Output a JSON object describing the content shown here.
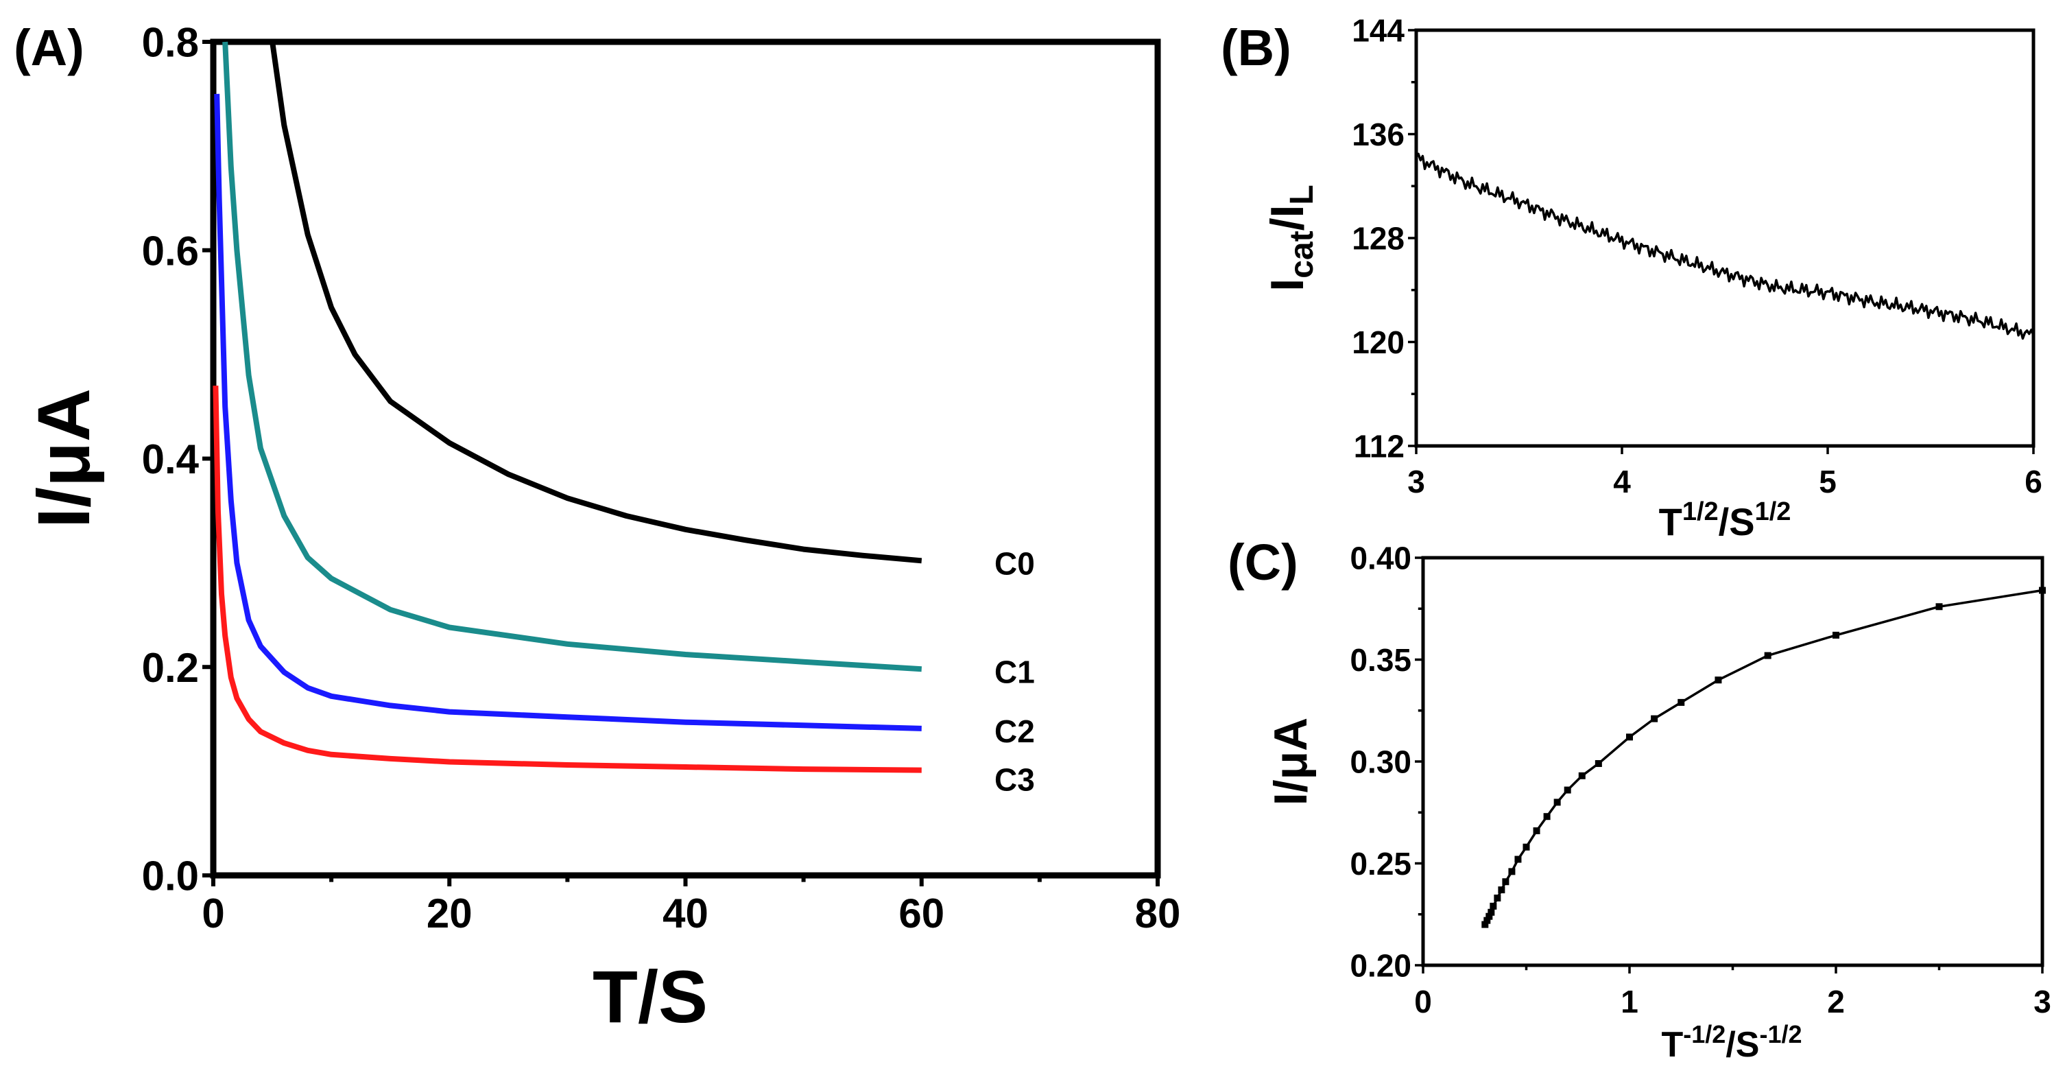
{
  "chart_data": [
    {
      "panel": "(A)",
      "type": "line",
      "xlabel": "T/S",
      "ylabel": "I/μA",
      "xlim": [
        0,
        80
      ],
      "ylim": [
        0,
        0.8
      ],
      "xticks": [
        "0",
        "20",
        "40",
        "60",
        "80"
      ],
      "yticks": [
        "0.0",
        "0.2",
        "0.4",
        "0.6",
        "0.8"
      ],
      "grid": false,
      "series": [
        {
          "name": "C0",
          "color": "#000000",
          "points": [
            [
              5,
              0.8
            ],
            [
              6,
              0.72
            ],
            [
              8,
              0.615
            ],
            [
              10,
              0.545
            ],
            [
              12,
              0.5
            ],
            [
              15,
              0.455
            ],
            [
              20,
              0.415
            ],
            [
              25,
              0.385
            ],
            [
              30,
              0.362
            ],
            [
              35,
              0.345
            ],
            [
              40,
              0.332
            ],
            [
              45,
              0.322
            ],
            [
              50,
              0.313
            ],
            [
              55,
              0.307
            ],
            [
              60,
              0.302
            ]
          ]
        },
        {
          "name": "C1",
          "color": "#1a8c8c",
          "points": [
            [
              1,
              0.8
            ],
            [
              1.5,
              0.68
            ],
            [
              2,
              0.6
            ],
            [
              3,
              0.48
            ],
            [
              4,
              0.41
            ],
            [
              6,
              0.345
            ],
            [
              8,
              0.305
            ],
            [
              10,
              0.285
            ],
            [
              15,
              0.255
            ],
            [
              20,
              0.238
            ],
            [
              30,
              0.222
            ],
            [
              40,
              0.212
            ],
            [
              50,
              0.205
            ],
            [
              60,
              0.198
            ]
          ]
        },
        {
          "name": "C2",
          "color": "#1a1aff",
          "points": [
            [
              0.3,
              0.75
            ],
            [
              0.5,
              0.65
            ],
            [
              1,
              0.45
            ],
            [
              1.5,
              0.36
            ],
            [
              2,
              0.3
            ],
            [
              3,
              0.245
            ],
            [
              4,
              0.22
            ],
            [
              6,
              0.195
            ],
            [
              8,
              0.18
            ],
            [
              10,
              0.172
            ],
            [
              15,
              0.163
            ],
            [
              20,
              0.157
            ],
            [
              30,
              0.152
            ],
            [
              40,
              0.147
            ],
            [
              50,
              0.144
            ],
            [
              60,
              0.141
            ]
          ]
        },
        {
          "name": "C3",
          "color": "#ff1a1a",
          "points": [
            [
              0.2,
              0.47
            ],
            [
              0.4,
              0.35
            ],
            [
              0.7,
              0.27
            ],
            [
              1,
              0.23
            ],
            [
              1.5,
              0.19
            ],
            [
              2,
              0.17
            ],
            [
              3,
              0.15
            ],
            [
              4,
              0.138
            ],
            [
              6,
              0.127
            ],
            [
              8,
              0.12
            ],
            [
              10,
              0.116
            ],
            [
              15,
              0.112
            ],
            [
              20,
              0.109
            ],
            [
              30,
              0.106
            ],
            [
              40,
              0.104
            ],
            [
              50,
              0.102
            ],
            [
              60,
              0.101
            ]
          ]
        }
      ]
    },
    {
      "panel": "(B)",
      "type": "line",
      "xlabel": "T^1/2/S^1/2",
      "ylabel": "Icat/IL",
      "xlim": [
        3,
        6
      ],
      "ylim": [
        112,
        144
      ],
      "xticks": [
        "3",
        "4",
        "5",
        "6"
      ],
      "yticks": [
        "112",
        "120",
        "128",
        "136",
        "144"
      ],
      "grid": false,
      "series": [
        {
          "name": "Icat/IL",
          "color": "#000000",
          "points": [
            [
              3.0,
              134.2
            ],
            [
              3.25,
              132.2
            ],
            [
              3.5,
              130.8
            ],
            [
              3.75,
              129.2
            ],
            [
              4.0,
              127.8
            ],
            [
              4.25,
              126.5
            ],
            [
              4.5,
              125.3
            ],
            [
              4.75,
              124.2
            ],
            [
              5.0,
              123.8
            ],
            [
              5.25,
              123.0
            ],
            [
              5.5,
              122.4
            ],
            [
              5.75,
              121.6
            ],
            [
              6.0,
              120.5
            ]
          ]
        }
      ]
    },
    {
      "panel": "(C)",
      "type": "line",
      "xlabel": "T^-1/2/S^-1/2",
      "ylabel": "I/μA",
      "xlim": [
        0,
        3
      ],
      "ylim": [
        0.2,
        0.4
      ],
      "xticks": [
        "0",
        "1",
        "2",
        "3"
      ],
      "yticks": [
        "0.20",
        "0.25",
        "0.30",
        "0.35",
        "0.40"
      ],
      "grid": false,
      "series": [
        {
          "name": "I",
          "color": "#000000",
          "markers": true,
          "points": [
            [
              0.3,
              0.22
            ],
            [
              0.31,
              0.222
            ],
            [
              0.32,
              0.224
            ],
            [
              0.33,
              0.226
            ],
            [
              0.34,
              0.229
            ],
            [
              0.36,
              0.233
            ],
            [
              0.38,
              0.237
            ],
            [
              0.4,
              0.241
            ],
            [
              0.43,
              0.246
            ],
            [
              0.46,
              0.252
            ],
            [
              0.5,
              0.258
            ],
            [
              0.55,
              0.266
            ],
            [
              0.6,
              0.273
            ],
            [
              0.65,
              0.28
            ],
            [
              0.7,
              0.286
            ],
            [
              0.77,
              0.293
            ],
            [
              0.85,
              0.299
            ],
            [
              1.0,
              0.312
            ],
            [
              1.12,
              0.321
            ],
            [
              1.25,
              0.329
            ],
            [
              1.43,
              0.34
            ],
            [
              1.67,
              0.352
            ],
            [
              2.0,
              0.362
            ],
            [
              2.5,
              0.376
            ],
            [
              3.0,
              0.384
            ]
          ]
        }
      ]
    }
  ],
  "labels": {
    "panel_a": "(A)",
    "panel_b": "(B)",
    "panel_c": "(C)",
    "a_ylabel": "I/μA",
    "a_xlabel": "T/S",
    "b_ylabel_main": "I",
    "b_ylabel_sub1": "cat",
    "b_ylabel_mid": "/I",
    "b_ylabel_sub2": "L",
    "b_xlabel_t": "T",
    "b_xlabel_exp1": "1/2",
    "b_xlabel_s": "/S",
    "b_xlabel_exp2": "1/2",
    "c_ylabel": "I/μA",
    "c_xlabel_t": "T",
    "c_xlabel_exp1": "-1/2",
    "c_xlabel_s": "/S",
    "c_xlabel_exp2": "-1/2"
  }
}
